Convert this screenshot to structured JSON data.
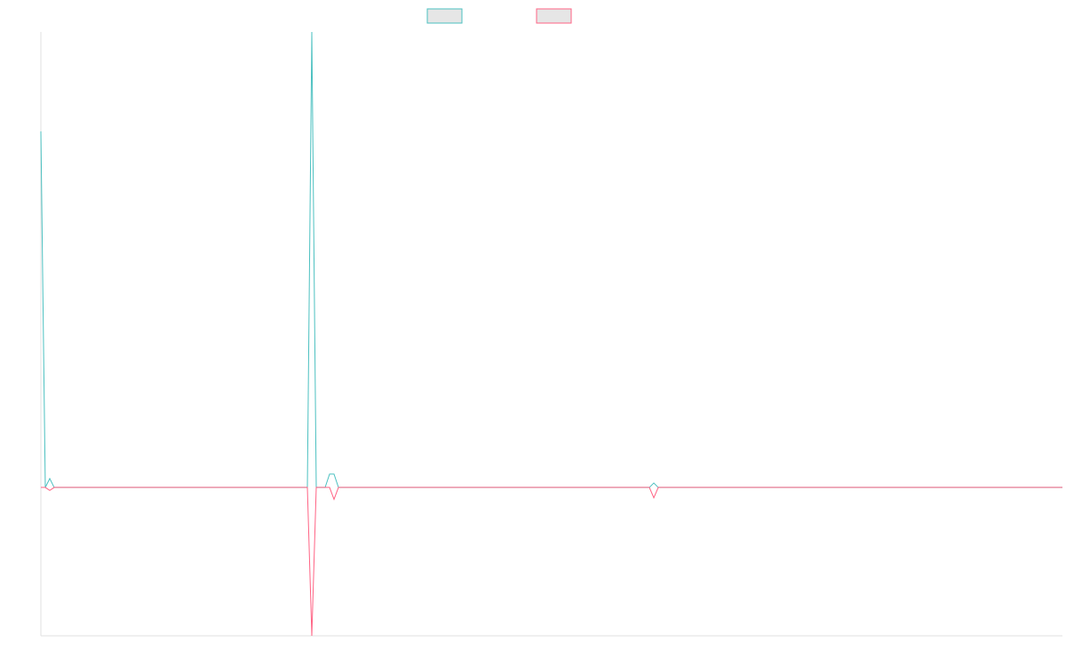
{
  "chart_data": {
    "type": "line",
    "x": [
      0,
      1,
      2,
      3,
      60,
      61,
      62,
      64,
      65,
      66,
      67,
      137,
      138,
      139,
      230
    ],
    "xlim": [
      0,
      230
    ],
    "ylim": [
      -1,
      3.07
    ],
    "series": [
      {
        "color": "#4bc0c0",
        "values": [
          2.4,
          0,
          0.06,
          0,
          0,
          3.07,
          0,
          0,
          0.09,
          0.09,
          0,
          0,
          0.03,
          0,
          0
        ]
      },
      {
        "color": "#ff6384",
        "values": [
          0,
          0,
          -0.02,
          0,
          0,
          -1,
          0,
          0,
          0,
          -0.08,
          0,
          0,
          -0.07,
          0,
          0
        ]
      }
    ]
  }
}
